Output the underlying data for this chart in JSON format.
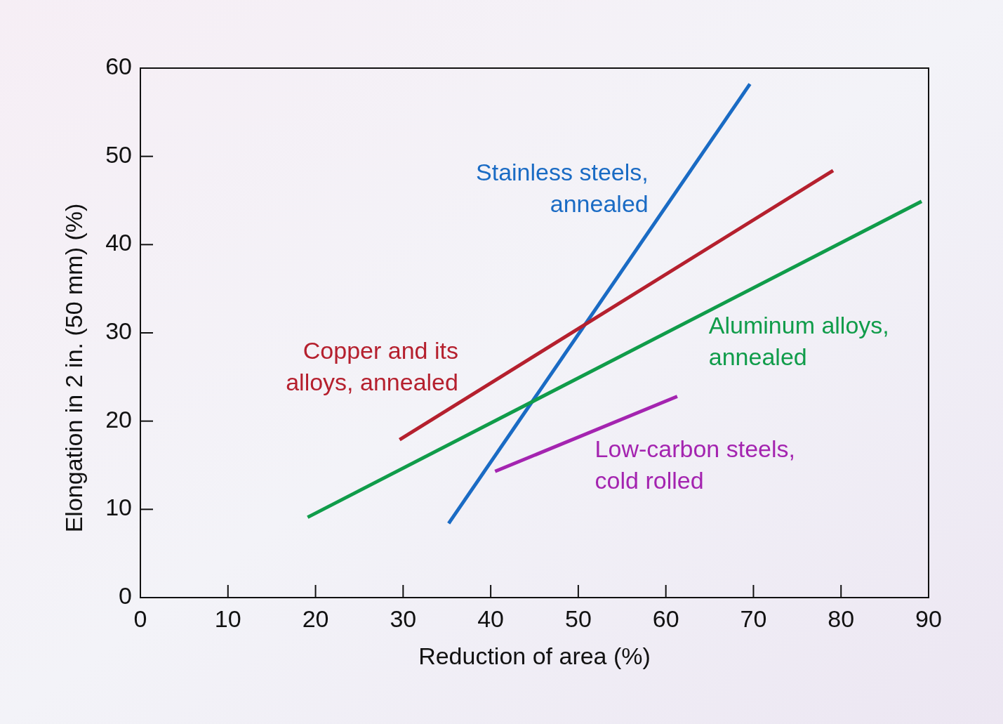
{
  "chart_data": {
    "type": "line",
    "xlabel": "Reduction of area (%)",
    "ylabel": "Elongation in 2 in. (50 mm) (%)",
    "xlim": [
      0,
      90
    ],
    "ylim": [
      0,
      60
    ],
    "xticks": [
      0,
      10,
      20,
      30,
      40,
      50,
      60,
      70,
      80,
      90
    ],
    "yticks": [
      0,
      10,
      20,
      30,
      40,
      50,
      60
    ],
    "grid": false,
    "marker": "none",
    "series": [
      {
        "name": "Stainless steels,\nannealed",
        "color": "#1a6bc4",
        "x": [
          35.2,
          69.6
        ],
        "values": [
          8.4,
          58.2
        ]
      },
      {
        "name": "Copper and its\nalloys, annealed",
        "color": "#b5202e",
        "x": [
          29.6,
          79.1
        ],
        "values": [
          17.9,
          48.4
        ]
      },
      {
        "name": "Aluminum alloys,\nannealed",
        "color": "#109c4a",
        "x": [
          19.1,
          89.2
        ],
        "values": [
          9.1,
          44.9
        ]
      },
      {
        "name": "Low-carbon steels,\ncold rolled",
        "color": "#a424b0",
        "x": [
          40.5,
          61.3
        ],
        "values": [
          14.3,
          22.8
        ]
      }
    ]
  }
}
